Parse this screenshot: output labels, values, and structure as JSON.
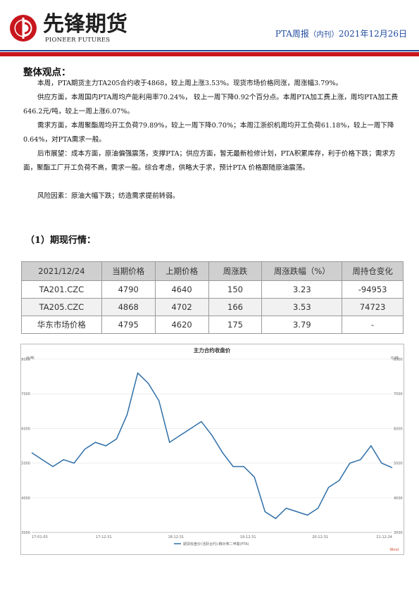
{
  "header": {
    "logo_cn": "先锋期货",
    "logo_en": "PIONEER FUTURES",
    "title_main": "PTA周报",
    "title_tag": "（内刊）",
    "title_date": "2021年12月26日",
    "brand_red": "#c8161d",
    "brand_blue": "#1f4a9e"
  },
  "summary": {
    "heading": "整体观点：",
    "p1": "本周，PTA期货主力TA205合约收于4868，较上周上涨3.53%。现货市场价格同涨，周涨幅3.79%。",
    "p2": "供应方面，本周国内PTA周均产能利用率70.24%， 较上一周下降0.92个百分点。本周PTA加工费上涨，周均PTA加工费646.2元/吨，较上一周上涨6.07%。",
    "p3": "需求方面，本周聚酯周均开工负荷79.89%，较上一周下降0.70%；本周江浙织机周均开工负荷61.18%，较上一周下降0.64%，对PTA需求一般。",
    "p4": "后市展望：成本方面，原油偏强震荡，支撑PTA；供应方面，暂无最新检修计划，PTA积累库存，利于价格下跌；需求方面，聚酯工厂开工负荷不高，需求一般。综合考虑，供略大于求，预计PTA 价格跟随原油震荡。",
    "p5": "风险因素：原油大幅下跌；纺造需求提前转弱。"
  },
  "market": {
    "heading": "（1）期现行情：",
    "columns": [
      "2021/12/24",
      "当期价格",
      "上期价格",
      "周涨跌",
      "周涨跌幅（%）",
      "周持仓变化"
    ],
    "rows": [
      [
        "TA201.CZC",
        "4790",
        "4640",
        "150",
        "3.23",
        "-94953"
      ],
      [
        "TA205.CZC",
        "4868",
        "4702",
        "166",
        "3.53",
        "74723"
      ],
      [
        "华东市场价格",
        "4795",
        "4620",
        "175",
        "3.79",
        "-"
      ]
    ]
  },
  "chart_data": {
    "type": "line",
    "title": "主力合约收盘价",
    "ylabel_left": "元/吨",
    "ylabel_right": "元/吨",
    "ylim": [
      3000,
      8000
    ],
    "yticks": [
      3000,
      4000,
      5000,
      6000,
      7000,
      8000
    ],
    "xticks": [
      "17-01-03",
      "17-12-31",
      "18-12-31",
      "19-12-31",
      "20-12-31",
      "21-12-24"
    ],
    "legend": "期货收盘价(活跃合约):精对苯二甲酸(PTA)",
    "source": "Wind",
    "line_color": "#2f6fa8",
    "series": [
      {
        "x": [
          "17-01",
          "17-03",
          "17-05",
          "17-07",
          "17-09",
          "17-11",
          "18-01",
          "18-03",
          "18-05",
          "18-07",
          "18-08",
          "18-09",
          "18-10",
          "18-11",
          "18-12",
          "19-02",
          "19-04",
          "19-06",
          "19-08",
          "19-10",
          "19-12",
          "20-02",
          "20-03",
          "20-04",
          "20-06",
          "20-08",
          "20-10",
          "20-12",
          "21-02",
          "21-04",
          "21-06",
          "21-08",
          "21-10",
          "21-11",
          "21-12"
        ],
        "values": [
          5300,
          5100,
          4900,
          5100,
          5000,
          5400,
          5600,
          5500,
          5700,
          6400,
          7600,
          7300,
          6800,
          5600,
          5800,
          6000,
          6200,
          5800,
          5300,
          4900,
          4900,
          4600,
          3600,
          3400,
          3700,
          3600,
          3500,
          3700,
          4300,
          4500,
          5000,
          5100,
          5500,
          5000,
          4868
        ]
      }
    ]
  }
}
